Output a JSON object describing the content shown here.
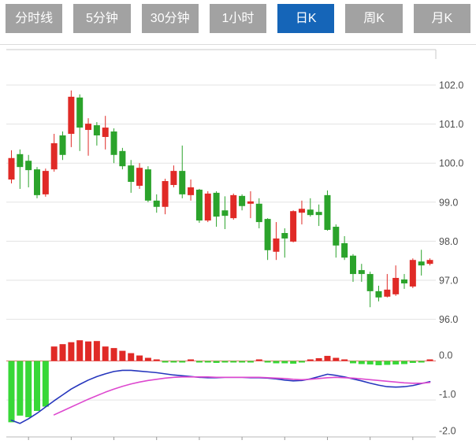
{
  "toolbar": {
    "tabs": [
      {
        "label": "分时线",
        "name": "tab-minute-line",
        "active": false
      },
      {
        "label": "5分钟",
        "name": "tab-5min",
        "active": false
      },
      {
        "label": "30分钟",
        "name": "tab-30min",
        "active": false
      },
      {
        "label": "1小时",
        "name": "tab-1hour",
        "active": false
      },
      {
        "label": "日K",
        "name": "tab-daily-k",
        "active": true
      },
      {
        "label": "周K",
        "name": "tab-weekly-k",
        "active": false
      },
      {
        "label": "月K",
        "name": "tab-monthly-k",
        "active": false
      }
    ],
    "active_color": "#1565b8",
    "inactive_color": "#a2a2a2",
    "text_color": "#ffffff"
  },
  "chart_data": {
    "type": "candlestick",
    "title": "",
    "panels": [
      {
        "name": "price",
        "y_ticks": [
          "102.0",
          "101.0",
          "100.0",
          "99.0",
          "98.0",
          "97.0",
          "96.0"
        ],
        "y_range": [
          96.0,
          102.0
        ],
        "grid": true
      },
      {
        "name": "macd",
        "y_ticks": [
          "0.0",
          "-1.0",
          "-2.0"
        ],
        "y_range": [
          -2.0,
          0.0
        ],
        "grid": true
      }
    ],
    "legend_position": "none",
    "x_tick_every_n_candles": 5,
    "candles_order": [
      "open",
      "high",
      "low",
      "close"
    ],
    "up_means": "close>=open (red)",
    "candles": [
      [
        99.58,
        100.33,
        99.48,
        100.13
      ],
      [
        100.23,
        100.35,
        99.34,
        99.9
      ],
      [
        100.06,
        100.21,
        99.38,
        99.82
      ],
      [
        99.84,
        99.9,
        99.1,
        99.18
      ],
      [
        99.2,
        99.86,
        99.14,
        99.8
      ],
      [
        99.84,
        100.75,
        99.78,
        100.51
      ],
      [
        100.71,
        100.81,
        100.08,
        100.21
      ],
      [
        100.75,
        101.86,
        100.41,
        101.7
      ],
      [
        101.68,
        101.76,
        100.31,
        100.91
      ],
      [
        100.85,
        101.15,
        100.19,
        101.01
      ],
      [
        100.97,
        101.05,
        100.45,
        100.71
      ],
      [
        100.67,
        101.21,
        100.35,
        100.91
      ],
      [
        100.81,
        100.89,
        100.0,
        100.21
      ],
      [
        100.31,
        100.39,
        99.84,
        99.92
      ],
      [
        99.94,
        100.08,
        99.24,
        99.52
      ],
      [
        99.42,
        100.0,
        99.34,
        99.88
      ],
      [
        99.84,
        99.92,
        99.0,
        99.04
      ],
      [
        99.04,
        99.2,
        98.73,
        98.88
      ],
      [
        98.88,
        99.6,
        98.69,
        99.54
      ],
      [
        99.44,
        99.94,
        99.38,
        99.8
      ],
      [
        99.8,
        100.45,
        99.1,
        99.2
      ],
      [
        99.18,
        99.58,
        99.04,
        99.38
      ],
      [
        99.32,
        99.34,
        98.47,
        98.53
      ],
      [
        98.53,
        99.28,
        98.49,
        99.22
      ],
      [
        99.24,
        99.28,
        98.37,
        98.63
      ],
      [
        98.79,
        99.15,
        98.31,
        98.65
      ],
      [
        98.59,
        99.22,
        98.55,
        99.18
      ],
      [
        99.16,
        99.2,
        98.79,
        98.9
      ],
      [
        98.96,
        99.28,
        98.59,
        99.02
      ],
      [
        98.96,
        99.1,
        98.33,
        98.49
      ],
      [
        98.57,
        98.59,
        97.52,
        97.77
      ],
      [
        97.73,
        98.49,
        97.52,
        98.07
      ],
      [
        98.21,
        98.33,
        97.58,
        98.07
      ],
      [
        97.99,
        98.79,
        97.97,
        98.77
      ],
      [
        98.73,
        99.04,
        98.43,
        98.83
      ],
      [
        98.81,
        99.1,
        98.63,
        98.67
      ],
      [
        98.75,
        98.94,
        98.39,
        98.67
      ],
      [
        99.18,
        99.3,
        98.27,
        98.29
      ],
      [
        98.37,
        98.43,
        97.58,
        97.89
      ],
      [
        97.95,
        98.13,
        97.52,
        97.58
      ],
      [
        97.63,
        97.67,
        96.96,
        97.16
      ],
      [
        97.26,
        97.42,
        96.96,
        97.16
      ],
      [
        97.16,
        97.22,
        96.31,
        96.72
      ],
      [
        96.72,
        96.86,
        96.46,
        96.56
      ],
      [
        96.58,
        97.16,
        96.56,
        96.76
      ],
      [
        96.64,
        97.38,
        96.6,
        97.06
      ],
      [
        97.02,
        97.16,
        96.78,
        96.92
      ],
      [
        96.84,
        97.56,
        96.8,
        97.52
      ],
      [
        97.48,
        97.78,
        97.12,
        97.38
      ],
      [
        97.42,
        97.56,
        97.38,
        97.52
      ]
    ],
    "macd": {
      "histogram": [
        -1.57,
        -1.4,
        -1.44,
        -1.28,
        -1.17,
        0.37,
        0.43,
        0.48,
        0.53,
        0.5,
        0.51,
        0.37,
        0.33,
        0.26,
        0.2,
        0.14,
        0.08,
        0.03,
        -0.03,
        -0.04,
        -0.03,
        0.02,
        -0.02,
        -0.04,
        -0.05,
        -0.04,
        -0.03,
        -0.02,
        -0.01,
        0.03,
        -0.02,
        -0.06,
        -0.06,
        -0.07,
        -0.02,
        0.04,
        0.07,
        0.13,
        0.08,
        0.03,
        -0.06,
        -0.08,
        -0.09,
        -0.11,
        -0.1,
        -0.09,
        -0.08,
        -0.05,
        -0.03,
        0.04
      ],
      "dif": [
        -1.52,
        -1.6,
        -1.48,
        -1.34,
        -1.18,
        -1.02,
        -0.87,
        -0.72,
        -0.6,
        -0.49,
        -0.4,
        -0.33,
        -0.27,
        -0.24,
        -0.24,
        -0.26,
        -0.28,
        -0.3,
        -0.33,
        -0.36,
        -0.38,
        -0.4,
        -0.42,
        -0.43,
        -0.43,
        -0.42,
        -0.42,
        -0.42,
        -0.43,
        -0.43,
        -0.44,
        -0.46,
        -0.49,
        -0.51,
        -0.5,
        -0.46,
        -0.4,
        -0.34,
        -0.37,
        -0.41,
        -0.46,
        -0.51,
        -0.57,
        -0.62,
        -0.66,
        -0.67,
        -0.66,
        -0.63,
        -0.58,
        -0.53
      ],
      "dea": [
        null,
        null,
        null,
        null,
        null,
        -1.38,
        -1.28,
        -1.18,
        -1.08,
        -0.98,
        -0.89,
        -0.8,
        -0.72,
        -0.65,
        -0.59,
        -0.54,
        -0.5,
        -0.47,
        -0.44,
        -0.42,
        -0.41,
        -0.41,
        -0.41,
        -0.41,
        -0.42,
        -0.42,
        -0.42,
        -0.42,
        -0.42,
        -0.42,
        -0.43,
        -0.44,
        -0.45,
        -0.47,
        -0.48,
        -0.47,
        -0.45,
        -0.43,
        -0.42,
        -0.43,
        -0.44,
        -0.46,
        -0.48,
        -0.5,
        -0.52,
        -0.54,
        -0.56,
        -0.57,
        -0.57,
        -0.55
      ]
    },
    "colors": {
      "up": "#e02a26",
      "down": "#2ba32b",
      "hist_up": "#e02a26",
      "hist_down": "#37d837",
      "dif_line": "#2636bd",
      "dea_line": "#dd48cf",
      "zero_line": "#e87070",
      "grid": "#e3e3e3",
      "border": "#c9c9c9",
      "axis_line": "#b9b9b9",
      "axis_tick": "#9a9a9a",
      "axis_text": "#4d4d4d"
    }
  }
}
